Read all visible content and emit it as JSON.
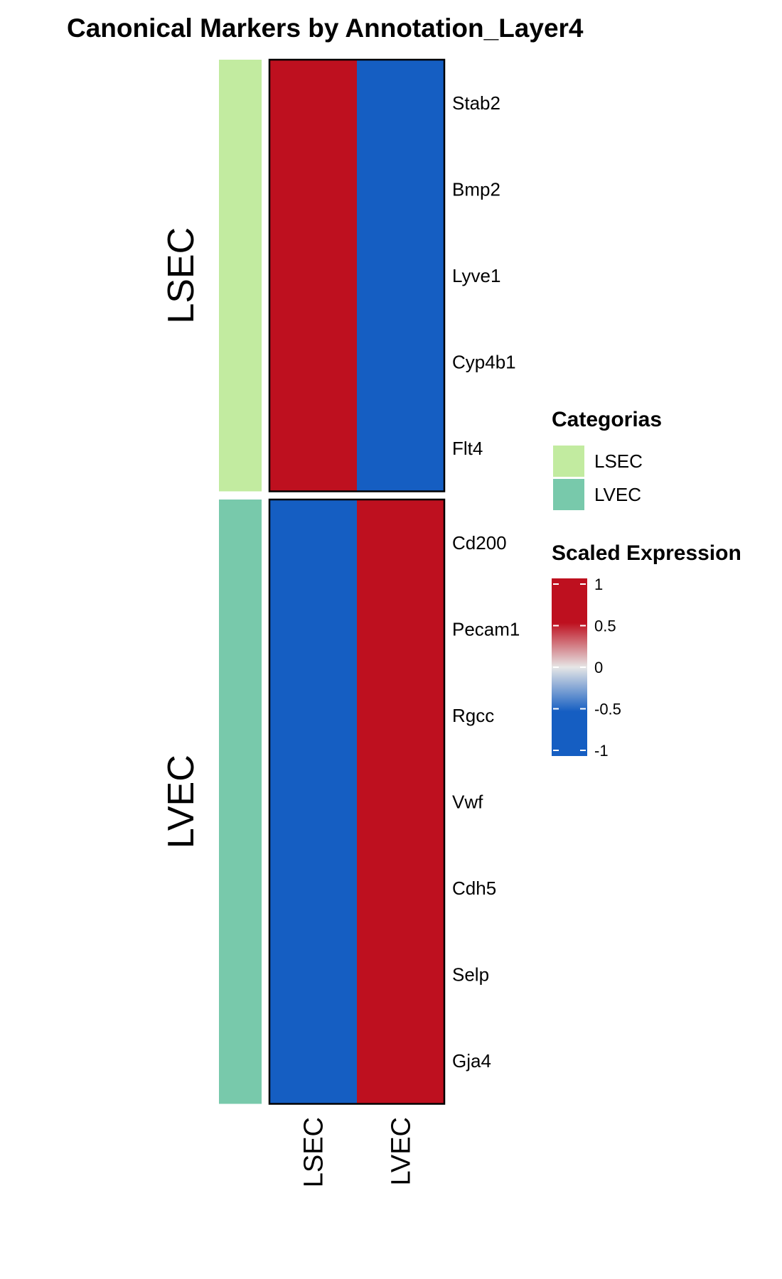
{
  "chart_data": {
    "type": "heatmap",
    "title": "Canonical Markers by Annotation_Layer4",
    "columns": [
      "LSEC",
      "LVEC"
    ],
    "row_groups": [
      {
        "name": "LSEC",
        "color": "#C2EBA0",
        "rows": [
          "Stab2",
          "Bmp2",
          "Lyve1",
          "Cyp4b1",
          "Flt4"
        ]
      },
      {
        "name": "LVEC",
        "color": "#78C9AB",
        "rows": [
          "Cd200",
          "Pecam1",
          "Rgcc",
          "Vwf",
          "Cdh5",
          "Selp",
          "Gja4"
        ]
      }
    ],
    "values": [
      [
        1,
        -1
      ],
      [
        1,
        -1
      ],
      [
        1,
        -1
      ],
      [
        1,
        -1
      ],
      [
        1,
        -1
      ],
      [
        -1,
        1
      ],
      [
        -1,
        1
      ],
      [
        -1,
        1
      ],
      [
        -1,
        1
      ],
      [
        -1,
        1
      ],
      [
        -1,
        1
      ],
      [
        -1,
        1
      ]
    ],
    "legend_categories": {
      "title": "Categorias",
      "items": [
        {
          "label": "LSEC",
          "color": "#C2EBA0"
        },
        {
          "label": "LVEC",
          "color": "#78C9AB"
        }
      ]
    },
    "legend_scale": {
      "title": "Scaled Expression",
      "ticks": [
        "1",
        "0.5",
        "0",
        "-0.5",
        "-1"
      ],
      "range": [
        -1,
        1
      ],
      "colors": {
        "low": "#155EC2",
        "mid": "#E6E6E6",
        "high": "#BE101F"
      }
    }
  }
}
